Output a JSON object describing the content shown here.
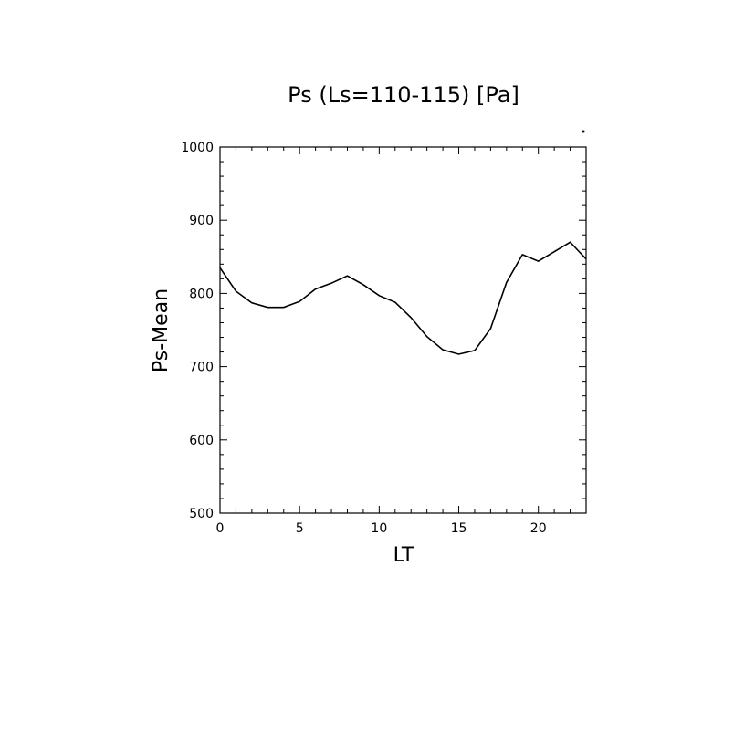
{
  "chart_data": {
    "type": "line",
    "title": "Ps (Ls=110-115) [Pa]",
    "xlabel": "LT",
    "ylabel": "Ps-Mean",
    "xlim": [
      0,
      23
    ],
    "ylim": [
      500,
      1000
    ],
    "x_major_ticks": [
      0,
      5,
      10,
      15,
      20
    ],
    "y_major_ticks": [
      500,
      600,
      700,
      800,
      900,
      1000
    ],
    "x_tick_labels": [
      "0",
      "5",
      "10",
      "15",
      "20"
    ],
    "y_tick_labels": [
      "500",
      "600",
      "700",
      "800",
      "900",
      "1000"
    ],
    "x_minor_step": 1,
    "y_minor_step": 20,
    "grid": false,
    "legend": "none",
    "line_color": "#000000",
    "series": [
      {
        "x": [
          0,
          1,
          2,
          3,
          4,
          5,
          6,
          7,
          8,
          9,
          10,
          11,
          12,
          13,
          14,
          15,
          16,
          17,
          18,
          19,
          20,
          21,
          22,
          23
        ],
        "values": [
          835,
          803,
          787,
          781,
          781,
          789,
          806,
          814,
          824,
          812,
          797,
          788,
          767,
          741,
          723,
          717,
          722,
          752,
          815,
          853,
          844,
          857,
          870,
          847
        ]
      }
    ]
  }
}
